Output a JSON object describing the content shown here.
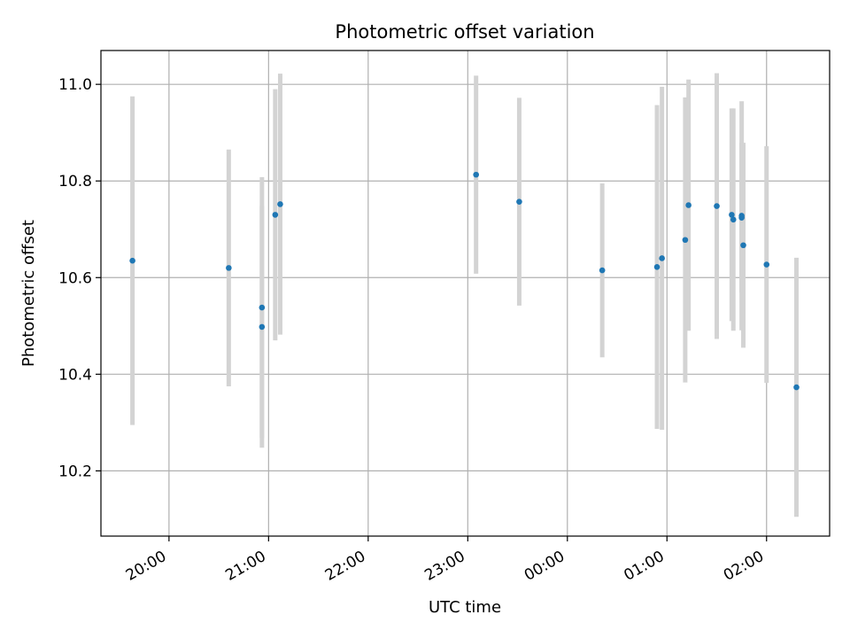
{
  "chart_data": {
    "type": "scatter",
    "title": "Photometric offset variation",
    "xlabel": "UTC time",
    "ylabel": "Photometric offset",
    "x_ticks": [
      "20:00",
      "21:00",
      "22:00",
      "23:00",
      "00:00",
      "01:00",
      "02:00"
    ],
    "y_ticks": [
      "10.2",
      "10.4",
      "10.6",
      "10.8",
      "11.0"
    ],
    "xlim": [
      "2000-01-01T19:19",
      "2000-01-02T02:38"
    ],
    "ylim": [
      10.065,
      11.07
    ],
    "grid": true,
    "colors": {
      "point": "#1f77b4",
      "errorbar": "#d3d3d3",
      "grid": "#b0b0b0"
    },
    "series": [
      {
        "points": [
          {
            "x": "2000-01-01T19:38",
            "y": 10.635,
            "yerr": 0.34
          },
          {
            "x": "2000-01-01T20:36",
            "y": 10.62,
            "yerr": 0.245
          },
          {
            "x": "2000-01-01T20:56",
            "y": 10.538,
            "yerr": 0.27
          },
          {
            "x": "2000-01-01T20:56",
            "y": 10.498,
            "yerr": 0.25
          },
          {
            "x": "2000-01-01T21:04",
            "y": 10.73,
            "yerr": 0.26
          },
          {
            "x": "2000-01-01T21:07",
            "y": 10.752,
            "yerr": 0.27
          },
          {
            "x": "2000-01-01T23:05",
            "y": 10.813,
            "yerr": 0.205
          },
          {
            "x": "2000-01-01T23:31",
            "y": 10.757,
            "yerr": 0.215
          },
          {
            "x": "2000-01-02T00:21",
            "y": 10.615,
            "yerr": 0.18
          },
          {
            "x": "2000-01-02T00:54",
            "y": 10.622,
            "yerr": 0.335
          },
          {
            "x": "2000-01-02T00:57",
            "y": 10.64,
            "yerr": 0.355
          },
          {
            "x": "2000-01-02T01:11",
            "y": 10.678,
            "yerr": 0.295
          },
          {
            "x": "2000-01-02T01:13",
            "y": 10.75,
            "yerr": 0.26
          },
          {
            "x": "2000-01-02T01:30",
            "y": 10.748,
            "yerr": 0.275
          },
          {
            "x": "2000-01-02T01:39",
            "y": 10.73,
            "yerr": 0.22
          },
          {
            "x": "2000-01-02T01:40",
            "y": 10.72,
            "yerr": 0.23
          },
          {
            "x": "2000-01-02T01:45",
            "y": 10.728,
            "yerr": 0.237
          },
          {
            "x": "2000-01-02T01:45",
            "y": 10.724,
            "yerr": 0.155
          },
          {
            "x": "2000-01-02T01:46",
            "y": 10.667,
            "yerr": 0.212
          },
          {
            "x": "2000-01-02T02:00",
            "y": 10.627,
            "yerr": 0.245
          },
          {
            "x": "2000-01-02T02:18",
            "y": 10.373,
            "yerr": 0.268
          }
        ]
      }
    ]
  }
}
